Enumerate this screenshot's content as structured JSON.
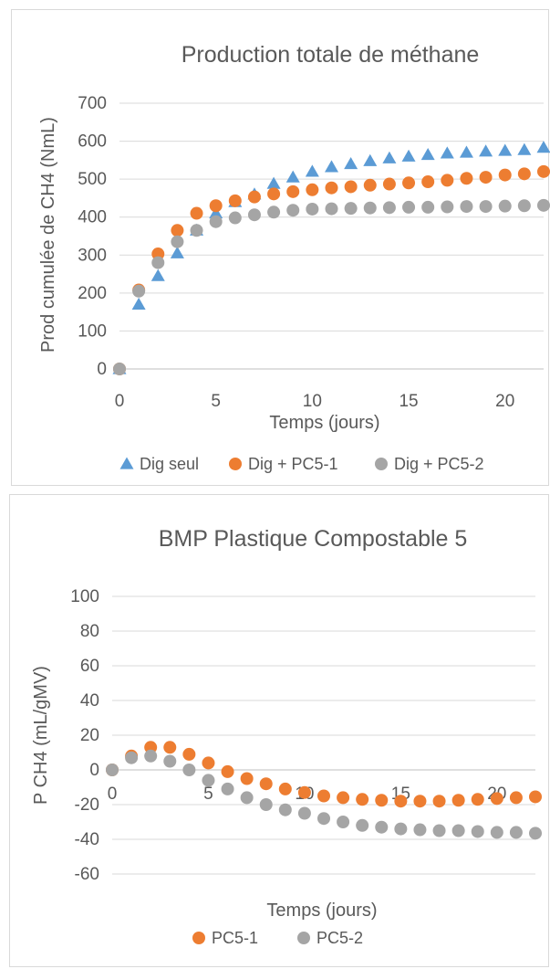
{
  "chart_data": [
    {
      "type": "scatter",
      "title": "Production totale de méthane",
      "xlabel": "Temps (jours)",
      "ylabel": "Prod cumulée de CH4 (NmL)",
      "xlim": [
        0,
        22
      ],
      "ylim": [
        0,
        700
      ],
      "xticks": [
        "0",
        "5",
        "10",
        "15",
        "20"
      ],
      "yticks": [
        "0",
        "100",
        "200",
        "300",
        "400",
        "500",
        "600",
        "700"
      ],
      "grid": "horizontal",
      "legend_position": "bottom",
      "series": [
        {
          "name": "Dig seul",
          "marker": "triangle",
          "color": "#5b9bd5",
          "x": [
            0,
            1,
            2,
            3,
            4,
            5,
            6,
            7,
            8,
            9,
            10,
            11,
            12,
            13,
            14,
            15,
            16,
            17,
            18,
            19,
            20,
            21,
            22
          ],
          "y": [
            0,
            170,
            245,
            305,
            365,
            410,
            440,
            460,
            488,
            505,
            520,
            532,
            540,
            548,
            555,
            560,
            564,
            568,
            570,
            573,
            575,
            577,
            583
          ]
        },
        {
          "name": "Dig + PC5-1",
          "marker": "circle",
          "color": "#ed7d31",
          "x": [
            0,
            1,
            2,
            3,
            4,
            5,
            6,
            7,
            8,
            9,
            10,
            11,
            12,
            13,
            14,
            15,
            16,
            17,
            18,
            19,
            20,
            21,
            22
          ],
          "y": [
            0,
            208,
            303,
            365,
            410,
            430,
            443,
            453,
            461,
            467,
            472,
            477,
            480,
            484,
            487,
            490,
            493,
            497,
            502,
            505,
            511,
            514,
            520
          ]
        },
        {
          "name": "Dig + PC5-2",
          "marker": "circle",
          "color": "#a5a5a5",
          "x": [
            0,
            1,
            2,
            3,
            4,
            5,
            6,
            7,
            8,
            9,
            10,
            11,
            12,
            13,
            14,
            15,
            16,
            17,
            18,
            19,
            20,
            21,
            22
          ],
          "y": [
            0,
            205,
            280,
            335,
            365,
            388,
            398,
            406,
            413,
            418,
            421,
            422,
            423,
            424,
            425,
            426,
            426,
            427,
            428,
            428,
            429,
            430,
            431
          ]
        }
      ]
    },
    {
      "type": "scatter",
      "title": "BMP Plastique Compostable 5",
      "xlabel": "Temps (jours)",
      "ylabel": "P CH4 (mL/gMV)",
      "xlim": [
        0,
        22
      ],
      "ylim": [
        -60,
        100
      ],
      "xticks": [
        "0",
        "5",
        "10",
        "15",
        "20"
      ],
      "yticks": [
        "100",
        "80",
        "60",
        "40",
        "20",
        "0",
        "-20",
        "-40",
        "-60"
      ],
      "grid": "horizontal",
      "legend_position": "bottom",
      "series": [
        {
          "name": "PC5-1",
          "marker": "circle",
          "color": "#ed7d31",
          "x": [
            0,
            1,
            2,
            3,
            4,
            5,
            6,
            7,
            8,
            9,
            10,
            11,
            12,
            13,
            14,
            15,
            16,
            17,
            18,
            19,
            20,
            21,
            22
          ],
          "y": [
            0,
            8,
            13,
            13,
            9,
            4,
            -1,
            -5,
            -8,
            -11,
            -13,
            -15,
            -16,
            -17,
            -17.5,
            -18,
            -18,
            -18,
            -17.5,
            -17,
            -16.5,
            -16,
            -15.5
          ]
        },
        {
          "name": "PC5-2",
          "marker": "circle",
          "color": "#a5a5a5",
          "x": [
            0,
            1,
            2,
            3,
            4,
            5,
            6,
            7,
            8,
            9,
            10,
            11,
            12,
            13,
            14,
            15,
            16,
            17,
            18,
            19,
            20,
            21,
            22
          ],
          "y": [
            0,
            7,
            8,
            5,
            0,
            -6,
            -11,
            -16,
            -20,
            -23,
            -25,
            -28,
            -30,
            -32,
            -33,
            -34,
            -34.5,
            -35,
            -35,
            -35.5,
            -36,
            -36,
            -36.5
          ]
        }
      ]
    }
  ]
}
